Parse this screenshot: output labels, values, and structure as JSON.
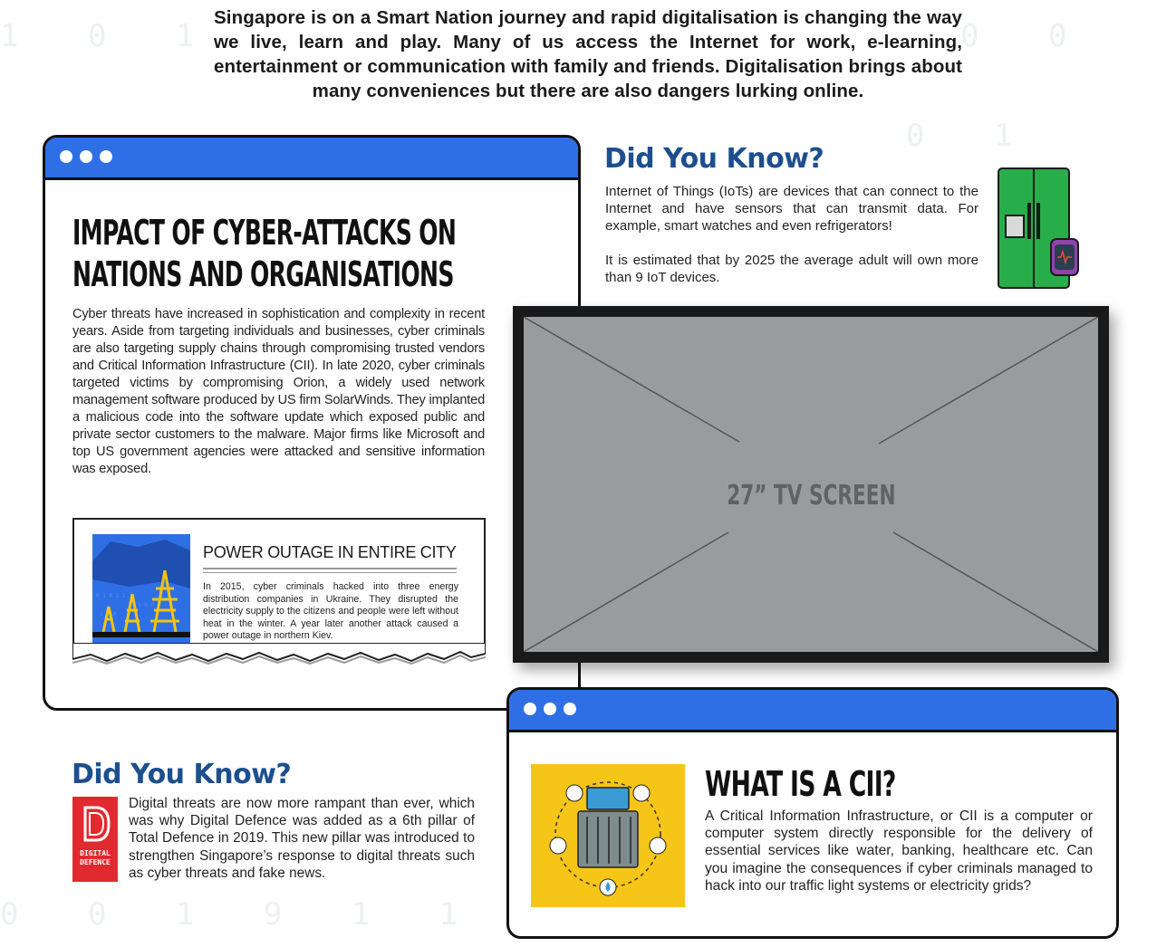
{
  "intro": {
    "text": "Singapore is on a Smart Nation journey and rapid digitalisation is changing the way we live, learn and play. Many of us access the Internet for work, e-learning, entertainment or communication with family and friends. Digitalisation brings about many conveniences but there are also dangers lurking online."
  },
  "impact_window": {
    "title": "IMPACT OF CYBER-ATTACKS ON\nNATIONS AND ORGANISATIONS",
    "body": "Cyber threats have increased in sophistication and complexity in recent years. Aside from targeting individuals and businesses, cyber criminals are also targeting supply chains through compromising trusted vendors and Critical Information Infrastructure (CII). In late 2020, cyber criminals targeted victims by compromising Orion, a widely used network management software produced by US firm SolarWinds. They implanted a malicious code into the software update which exposed public and private sector customers to the malware. Major firms like Microsoft and top US government agencies were attacked and sensitive information was exposed.",
    "news": {
      "title": "POWER OUTAGE IN ENTIRE CITY",
      "text": "In 2015, cyber criminals hacked into three energy distribution companies in Ukraine. They disrupted the electricity supply to the citizens and people were left without heat in the winter. A year later another attack caused a power outage in northern Kiev."
    }
  },
  "did_you_know_iot": {
    "title": "Did You Know?",
    "para1": "Internet of Things (IoTs) are devices that can connect to the Internet and have sensors that can transmit data. For example, smart watches and even refrigerators!",
    "para2": "It is estimated that by 2025 the average adult will own more than 9 IoT devices."
  },
  "tv": {
    "label": "27” TV SCREEN"
  },
  "did_you_know_defence": {
    "title": "Did You Know?",
    "text": "Digital threats are now more rampant than ever, which was why Digital Defence was added as a 6th pillar of Total Defence in 2019. This new pillar was introduced to strengthen Singapore’s response to digital threats such as cyber threats and fake news.",
    "logo_text": "DIGITAL DEFENCE"
  },
  "cii_window": {
    "title": "WHAT IS A CII?",
    "body": "A Critical Information Infrastructure, or CII is a computer or computer system directly responsible for the delivery of essential services like water, banking, healthcare etc. Can you imagine the consequences if cyber criminals managed to hack into our traffic light systems or electricity grids?"
  },
  "colors": {
    "window_bar": "#2f6fe6",
    "heading_blue": "#1d4f8f",
    "tv_screen": "#999b9d",
    "cii_bg": "#f5c518",
    "defence_red": "#e02a2f",
    "fridge_green": "#27ae4a"
  }
}
